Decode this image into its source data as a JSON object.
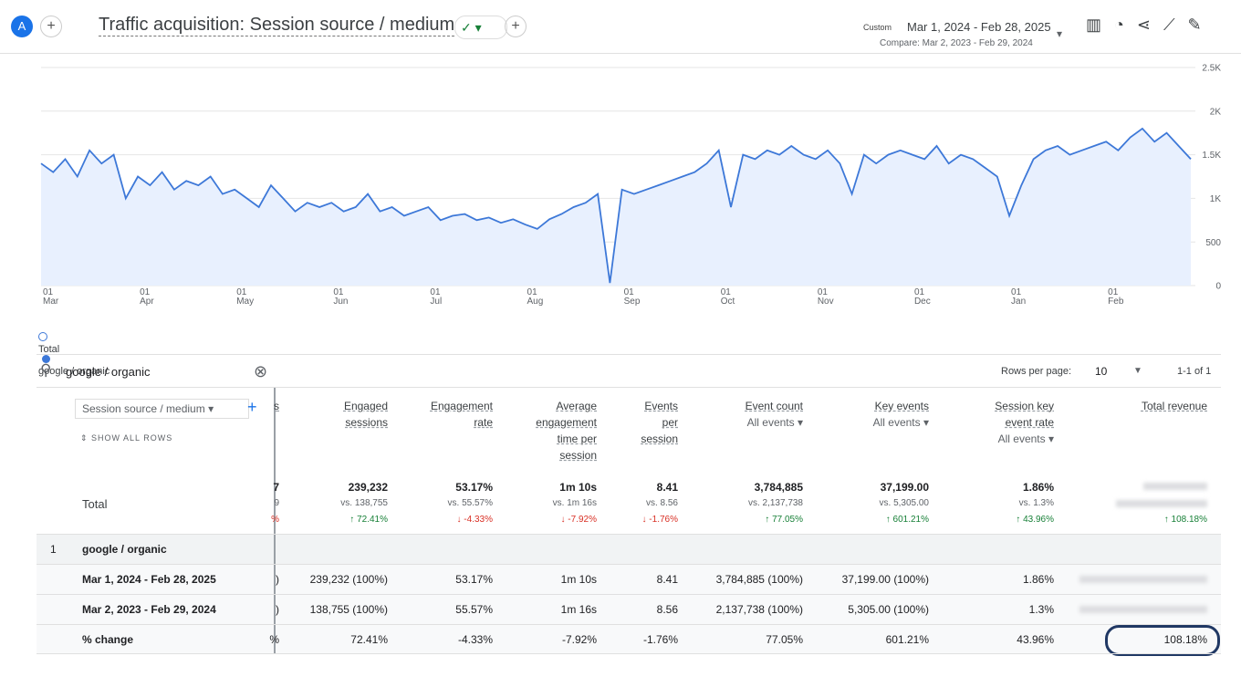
{
  "header": {
    "avatar": "A",
    "title": "Traffic acquisition: Session source / medium",
    "date_label": "Custom",
    "date_range": "Mar 1, 2024 - Feb 28, 2025",
    "compare": "Compare: Mar 2, 2023 - Feb 29, 2024"
  },
  "chart_data": {
    "type": "line",
    "categories": [
      "01\nMar",
      null,
      null,
      null,
      null,
      null,
      null,
      null,
      "01\nApr",
      null,
      null,
      null,
      null,
      null,
      null,
      null,
      "01\nMay",
      null,
      null,
      null,
      null,
      null,
      null,
      null,
      "01\nJun",
      null,
      null,
      null,
      null,
      null,
      null,
      null,
      "01\nJul",
      null,
      null,
      null,
      null,
      null,
      null,
      null,
      "01\nAug",
      null,
      null,
      null,
      null,
      null,
      null,
      null,
      "01\nSep",
      null,
      null,
      null,
      null,
      null,
      null,
      null,
      "01\nOct",
      null,
      null,
      null,
      null,
      null,
      null,
      null,
      "01\nNov",
      null,
      null,
      null,
      null,
      null,
      null,
      null,
      "01\nDec",
      null,
      null,
      null,
      null,
      null,
      null,
      null,
      "01\nJan",
      null,
      null,
      null,
      null,
      null,
      null,
      null,
      "01\nFeb",
      null,
      null,
      null,
      null,
      null,
      null,
      null
    ],
    "series": [
      {
        "name": "google / organic",
        "color": "#3d78d8",
        "values": [
          1400,
          1300,
          1450,
          1250,
          1550,
          1400,
          1500,
          1000,
          1250,
          1150,
          1300,
          1100,
          1200,
          1150,
          1250,
          1050,
          1100,
          1000,
          900,
          1150,
          1000,
          850,
          950,
          900,
          950,
          850,
          900,
          1050,
          850,
          900,
          800,
          850,
          900,
          750,
          800,
          820,
          750,
          780,
          720,
          760,
          700,
          650,
          760,
          820,
          900,
          950,
          1050,
          30,
          1100,
          1050,
          1100,
          1150,
          1200,
          1250,
          1300,
          1400,
          1550,
          900,
          1500,
          1450,
          1550,
          1500,
          1600,
          1500,
          1450,
          1550,
          1400,
          1050,
          1500,
          1400,
          1500,
          1550,
          1500,
          1450,
          1600,
          1400,
          1500,
          1450,
          1350,
          1250,
          800,
          1150,
          1450,
          1550,
          1600,
          1500,
          1550,
          1600,
          1650,
          1550,
          1700,
          1800,
          1650,
          1750,
          1600,
          1450
        ]
      }
    ],
    "legend_total": "Total",
    "ylim": [
      0,
      2500
    ],
    "yticks": [
      0,
      500,
      {
        "value": 1000,
        "label": "1K"
      },
      {
        "value": 1500,
        "label": "1.5K"
      },
      {
        "value": 2000,
        "label": "2K"
      },
      {
        "value": 2500,
        "label": "2.5K"
      }
    ],
    "grid": true,
    "fill_color": "#e8f0fe"
  },
  "table": {
    "search": "google / organic",
    "rows_per_page_label": "Rows per page:",
    "rows_per_page": "10",
    "pagination": "1-1 of 1",
    "dimension": "Session source / medium",
    "show_all": "SHOW ALL ROWS",
    "columns": [
      {
        "title": "s"
      },
      {
        "title": "Engaged\nsessions"
      },
      {
        "title": "Engagement\nrate"
      },
      {
        "title": "Average\nengagement\ntime per\nsession"
      },
      {
        "title": "Events\nper\nsession"
      },
      {
        "title": "Event count",
        "sub": "All events"
      },
      {
        "title": "Key events",
        "sub": "All events"
      },
      {
        "title": "Session key\nevent rate",
        "sub": "All events"
      },
      {
        "title": "Total revenue"
      }
    ],
    "total": {
      "label": "Total",
      "cells": [
        [
          "7",
          "9",
          "%"
        ],
        [
          "239,232",
          "vs. 138,755",
          "↑ 72.41%"
        ],
        [
          "53.17%",
          "vs. 55.57%",
          "↓ -4.33%"
        ],
        [
          "1m 10s",
          "vs. 1m 16s",
          "↓ -7.92%"
        ],
        [
          "8.41",
          "vs. 8.56",
          "↓ -1.76%"
        ],
        [
          "3,784,885",
          "vs. 2,137,738",
          "↑ 77.05%"
        ],
        [
          "37,199.00",
          "vs. 5,305.00",
          "↑ 601.21%"
        ],
        [
          "1.86%",
          "vs. 1.3%",
          "↑ 43.96%"
        ],
        [
          null,
          null,
          "↑ 108.18%"
        ]
      ]
    },
    "group": {
      "index": "1",
      "label": "google / organic"
    },
    "rows": [
      {
        "label": "Mar 1, 2024 - Feb 28, 2025",
        "cells": [
          ")",
          "239,232 (100%)",
          "53.17%",
          "1m 10s",
          "8.41",
          "3,784,885 (100%)",
          "37,199.00 (100%)",
          "1.86%",
          null
        ]
      },
      {
        "label": "Mar 2, 2023 - Feb 29, 2024",
        "cells": [
          ")",
          "138,755 (100%)",
          "55.57%",
          "1m 16s",
          "8.56",
          "2,137,738 (100%)",
          "5,305.00 (100%)",
          "1.3%",
          null
        ]
      },
      {
        "label": "% change",
        "cells": [
          "%",
          "72.41%",
          "-4.33%",
          "-7.92%",
          "-1.76%",
          "77.05%",
          "601.21%",
          "43.96%",
          "108.18%"
        ]
      }
    ]
  }
}
